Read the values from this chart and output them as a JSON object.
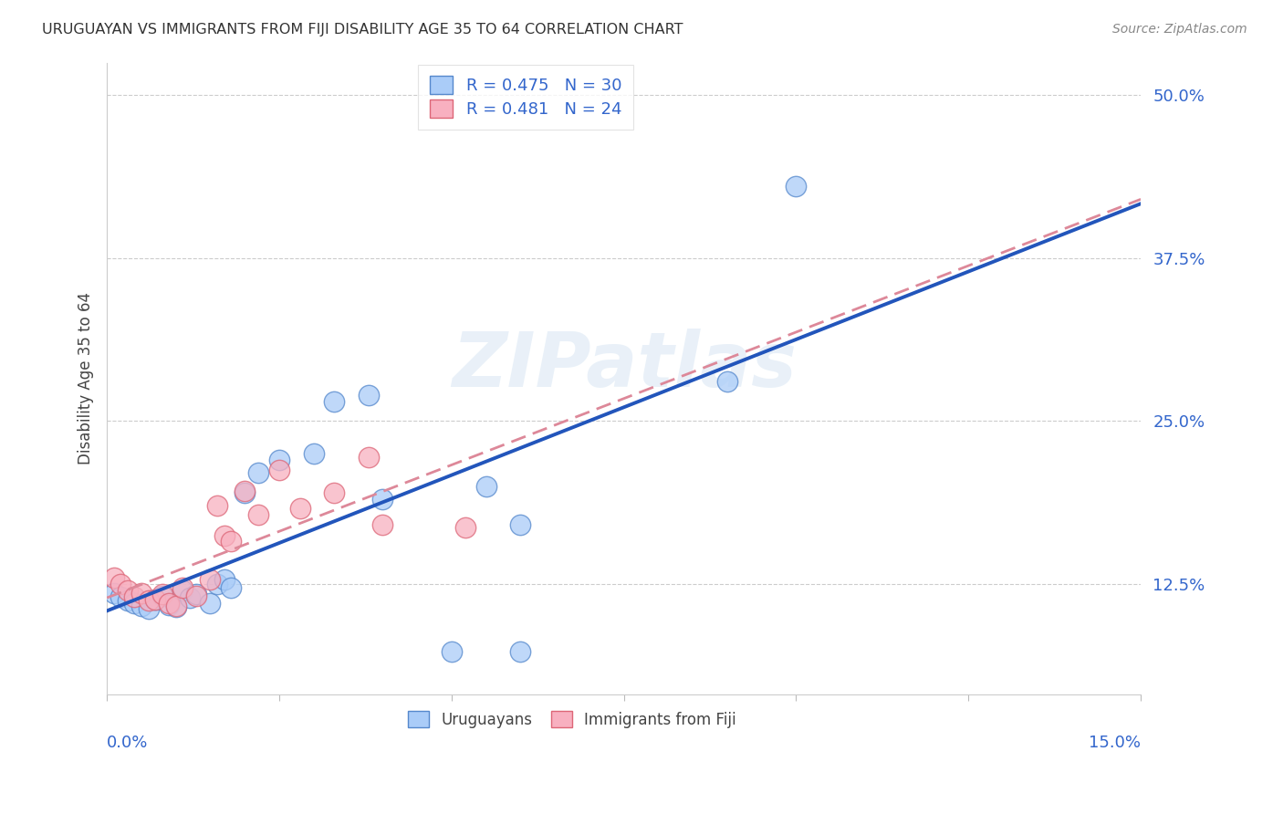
{
  "title": "URUGUAYAN VS IMMIGRANTS FROM FIJI DISABILITY AGE 35 TO 64 CORRELATION CHART",
  "source": "Source: ZipAtlas.com",
  "ylabel": "Disability Age 35 to 64",
  "ytick_vals": [
    0.125,
    0.25,
    0.375,
    0.5
  ],
  "ytick_labels": [
    "12.5%",
    "25.0%",
    "37.5%",
    "50.0%"
  ],
  "xmin": 0.0,
  "xmax": 0.15,
  "ymin": 0.04,
  "ymax": 0.525,
  "uruguayan_color": "#aaccf8",
  "uruguayan_edge": "#5588cc",
  "fiji_color": "#f8b0c0",
  "fiji_edge": "#dd6677",
  "line_uruguayan_color": "#2255bb",
  "line_fiji_color": "#dd8899",
  "watermark": "ZIPatlas",
  "R_uru": "0.475",
  "N_uru": "30",
  "R_fiji": "0.481",
  "N_fiji": "24",
  "uruguayan_x": [
    0.001,
    0.002,
    0.003,
    0.004,
    0.005,
    0.006,
    0.007,
    0.008,
    0.009,
    0.01,
    0.011,
    0.012,
    0.013,
    0.015,
    0.016,
    0.017,
    0.018,
    0.02,
    0.022,
    0.025,
    0.03,
    0.033,
    0.038,
    0.04,
    0.055,
    0.06,
    0.09,
    0.1,
    0.05,
    0.06
  ],
  "uruguayan_y": [
    0.118,
    0.115,
    0.112,
    0.11,
    0.108,
    0.106,
    0.113,
    0.116,
    0.109,
    0.107,
    0.12,
    0.114,
    0.117,
    0.11,
    0.125,
    0.128,
    0.122,
    0.195,
    0.21,
    0.22,
    0.225,
    0.265,
    0.27,
    0.19,
    0.2,
    0.17,
    0.28,
    0.43,
    0.073,
    0.073
  ],
  "fiji_x": [
    0.001,
    0.002,
    0.003,
    0.004,
    0.005,
    0.006,
    0.007,
    0.008,
    0.009,
    0.01,
    0.011,
    0.013,
    0.015,
    0.016,
    0.017,
    0.018,
    0.02,
    0.022,
    0.025,
    0.028,
    0.033,
    0.038,
    0.04,
    0.052
  ],
  "fiji_y": [
    0.13,
    0.125,
    0.12,
    0.115,
    0.118,
    0.112,
    0.113,
    0.117,
    0.11,
    0.108,
    0.122,
    0.116,
    0.128,
    0.185,
    0.162,
    0.158,
    0.196,
    0.178,
    0.212,
    0.183,
    0.195,
    0.222,
    0.17,
    0.168
  ]
}
